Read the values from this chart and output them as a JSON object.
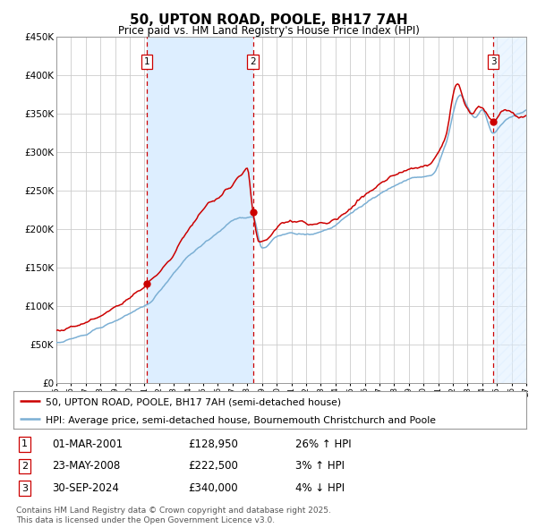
{
  "title": "50, UPTON ROAD, POOLE, BH17 7AH",
  "subtitle": "Price paid vs. HM Land Registry's House Price Index (HPI)",
  "legend_line1": "50, UPTON ROAD, POOLE, BH17 7AH (semi-detached house)",
  "legend_line2": "HPI: Average price, semi-detached house, Bournemouth Christchurch and Poole",
  "footer": "Contains HM Land Registry data © Crown copyright and database right 2025.\nThis data is licensed under the Open Government Licence v3.0.",
  "x_start_year": 1995,
  "x_end_year": 2027,
  "y_min": 0,
  "y_max": 450000,
  "y_ticks": [
    0,
    50000,
    100000,
    150000,
    200000,
    250000,
    300000,
    350000,
    400000,
    450000
  ],
  "y_tick_labels": [
    "£0",
    "£50K",
    "£100K",
    "£150K",
    "£200K",
    "£250K",
    "£300K",
    "£350K",
    "£400K",
    "£450K"
  ],
  "sale1_year": 2001.17,
  "sale1_price": 128950,
  "sale2_year": 2008.39,
  "sale2_price": 222500,
  "sale3_year": 2024.75,
  "sale3_price": 340000,
  "sale1_date": "01-MAR-2001",
  "sale1_hpi_pct": "26%",
  "sale1_hpi_dir": "↑",
  "sale2_date": "23-MAY-2008",
  "sale2_hpi_pct": "3%",
  "sale2_hpi_dir": "↑",
  "sale3_date": "30-SEP-2024",
  "sale3_hpi_pct": "4%",
  "sale3_hpi_dir": "↓",
  "red_line_color": "#cc0000",
  "blue_line_color": "#7bafd4",
  "shading_color": "#ddeeff",
  "bg_color": "#ffffff",
  "grid_color": "#cccccc"
}
